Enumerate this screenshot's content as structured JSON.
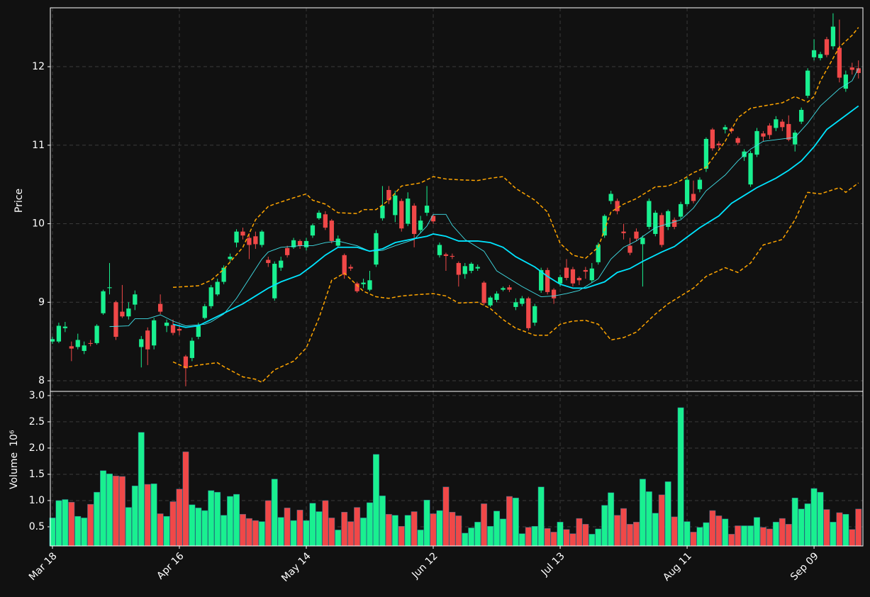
{
  "chart_data": {
    "type": "candlestick",
    "ylabel": "Price",
    "volume_label": "Volume",
    "volume_scale": "10⁶",
    "up_color": "#19f090",
    "down_color": "#f04848",
    "grid": true,
    "xlim": [
      -0.33,
      127.7
    ],
    "xticks": [
      {
        "value": 0,
        "label": "Mar 18"
      },
      {
        "value": 20,
        "label": "Apr 16"
      },
      {
        "value": 40,
        "label": "May 14"
      },
      {
        "value": 60,
        "label": "Jun 12"
      },
      {
        "value": 80,
        "label": "Jul 13"
      },
      {
        "value": 100,
        "label": "Aug 11"
      },
      {
        "value": 120,
        "label": "Sep 09"
      }
    ],
    "ylim": [
      7.865,
      12.75
    ],
    "yticks": [
      8,
      9,
      10,
      11,
      12
    ],
    "y2lim": [
      0.135,
      3.08
    ],
    "y2ticks": [
      0.5,
      {
        "value": 1,
        "label": "1.0"
      },
      1.5,
      {
        "value": 2,
        "label": "2.0"
      },
      2.5,
      {
        "value": 3,
        "label": "3.0"
      }
    ],
    "open": [
      8.5,
      8.5,
      8.67,
      8.44,
      8.43,
      8.38,
      8.48,
      8.48,
      8.86,
      9.18,
      9.0,
      8.88,
      8.82,
      8.97,
      8.43,
      8.64,
      8.45,
      8.98,
      8.7,
      8.71,
      8.66,
      8.31,
      8.29,
      8.56,
      8.8,
      8.95,
      9.1,
      9.26,
      9.55,
      9.76,
      9.9,
      9.82,
      9.84,
      9.73,
      9.54,
      9.05,
      9.44,
      9.69,
      9.7,
      9.78,
      9.7,
      9.85,
      10.07,
      10.12,
      10.04,
      9.72,
      9.6,
      9.45,
      9.24,
      9.23,
      9.16,
      9.48,
      10.07,
      10.43,
      10.11,
      10.29,
      10.0,
      10.23,
      9.92,
      10.14,
      10.1,
      9.6,
      9.61,
      9.59,
      9.5,
      9.36,
      9.4,
      9.43,
      9.25,
      8.96,
      9.03,
      9.16,
      9.19,
      8.94,
      8.98,
      9.05,
      8.74,
      9.15,
      9.41,
      9.16,
      9.24,
      9.44,
      9.42,
      9.31,
      9.41,
      9.28,
      9.51,
      9.85,
      10.29,
      10.29,
      9.9,
      9.72,
      9.9,
      9.74,
      9.96,
      9.87,
      10.11,
      9.96,
      10.05,
      10.09,
      10.25,
      10.38,
      10.44,
      10.7,
      11.2,
      11.02,
      11.2,
      11.21,
      11.09,
      10.85,
      10.5,
      10.88,
      11.15,
      11.25,
      11.22,
      11.3,
      11.27,
      11.01,
      11.3,
      11.63,
      12.12,
      12.11,
      12.35,
      12.26,
      12.24,
      11.72,
      11.99,
      11.98
    ],
    "high": [
      8.56,
      8.74,
      8.75,
      8.5,
      8.6,
      8.5,
      8.52,
      8.72,
      9.16,
      9.5,
      9.02,
      9.22,
      9.0,
      9.15,
      8.57,
      8.68,
      8.8,
      9.1,
      8.78,
      8.78,
      8.72,
      8.33,
      8.55,
      8.74,
      8.98,
      9.22,
      9.3,
      9.47,
      9.62,
      9.93,
      9.95,
      9.88,
      9.9,
      9.92,
      9.58,
      9.52,
      9.58,
      9.72,
      9.82,
      9.8,
      9.82,
      10.0,
      10.17,
      10.16,
      10.06,
      9.85,
      9.62,
      9.48,
      9.26,
      9.3,
      9.4,
      9.92,
      10.48,
      10.48,
      10.42,
      10.32,
      10.4,
      10.26,
      10.1,
      10.48,
      10.12,
      9.76,
      9.63,
      9.62,
      9.52,
      9.5,
      9.51,
      9.48,
      9.27,
      9.08,
      9.14,
      9.2,
      9.22,
      9.05,
      9.08,
      9.07,
      8.98,
      9.44,
      9.44,
      9.18,
      9.35,
      9.55,
      9.45,
      9.33,
      9.45,
      9.5,
      9.76,
      10.12,
      10.42,
      10.32,
      10.0,
      9.82,
      9.94,
      9.85,
      10.32,
      10.17,
      10.14,
      10.18,
      10.08,
      10.28,
      10.59,
      10.55,
      10.59,
      11.1,
      11.22,
      11.05,
      11.26,
      11.23,
      11.11,
      10.95,
      10.93,
      11.22,
      11.18,
      11.28,
      11.37,
      11.33,
      11.38,
      11.19,
      11.48,
      11.98,
      12.35,
      12.19,
      12.38,
      12.68,
      12.6,
      11.95,
      12.05,
      12.08
    ],
    "low": [
      8.47,
      8.48,
      8.62,
      8.25,
      8.4,
      8.34,
      8.44,
      8.46,
      8.84,
      9.1,
      8.52,
      8.8,
      8.78,
      8.9,
      8.17,
      8.2,
      8.4,
      8.85,
      8.62,
      8.58,
      8.58,
      7.93,
      8.25,
      8.53,
      8.78,
      8.92,
      9.08,
      9.23,
      9.52,
      9.7,
      9.8,
      9.55,
      9.68,
      9.7,
      9.45,
      9.02,
      9.4,
      9.57,
      9.68,
      9.68,
      9.66,
      9.82,
      10.05,
      9.92,
      9.75,
      9.7,
      9.3,
      9.4,
      9.12,
      9.18,
      9.14,
      9.45,
      10.04,
      10.25,
      10.02,
      9.9,
      9.97,
      9.7,
      9.88,
      10.1,
      10.0,
      9.57,
      9.4,
      9.55,
      9.2,
      9.3,
      9.37,
      9.4,
      8.96,
      8.94,
      9.0,
      9.14,
      9.13,
      8.9,
      8.95,
      8.64,
      8.7,
      9.12,
      9.1,
      8.98,
      9.2,
      9.28,
      9.2,
      9.22,
      9.3,
      9.25,
      9.48,
      9.82,
      10.25,
      10.12,
      9.8,
      9.6,
      9.78,
      9.2,
      9.93,
      9.84,
      9.7,
      9.92,
      9.93,
      10.06,
      10.22,
      10.26,
      10.4,
      10.66,
      10.93,
      10.96,
      11.15,
      11.15,
      11.0,
      10.8,
      10.47,
      10.85,
      11.05,
      11.08,
      11.18,
      11.18,
      11.05,
      10.92,
      11.27,
      11.6,
      12.08,
      12.08,
      12.12,
      12.22,
      11.8,
      11.68,
      11.9,
      11.85
    ],
    "close": [
      8.53,
      8.7,
      8.69,
      8.41,
      8.52,
      8.45,
      8.47,
      8.7,
      9.14,
      9.19,
      8.56,
      8.82,
      8.92,
      9.1,
      8.53,
      8.4,
      8.77,
      8.88,
      8.74,
      8.61,
      8.64,
      8.16,
      8.51,
      8.7,
      8.95,
      9.19,
      9.26,
      9.44,
      9.58,
      9.9,
      9.85,
      9.73,
      9.74,
      9.9,
      9.5,
      9.49,
      9.53,
      9.6,
      9.79,
      9.72,
      9.78,
      9.98,
      10.14,
      9.95,
      9.78,
      9.81,
      9.35,
      9.43,
      9.14,
      9.25,
      9.28,
      9.88,
      10.23,
      10.3,
      10.36,
      9.94,
      10.32,
      9.87,
      10.04,
      10.23,
      10.03,
      9.73,
      9.59,
      9.58,
      9.35,
      9.46,
      9.49,
      9.45,
      8.99,
      9.06,
      9.11,
      9.18,
      9.16,
      9.0,
      9.05,
      8.67,
      8.95,
      9.41,
      9.13,
      9.05,
      9.32,
      9.31,
      9.24,
      9.28,
      9.39,
      9.43,
      9.73,
      10.1,
      10.38,
      10.16,
      9.88,
      9.63,
      9.81,
      9.82,
      10.29,
      10.14,
      9.73,
      10.16,
      9.96,
      10.25,
      10.56,
      10.29,
      10.56,
      11.08,
      10.96,
      11.0,
      11.23,
      11.18,
      11.03,
      10.92,
      10.9,
      11.18,
      11.11,
      11.13,
      11.33,
      11.23,
      11.07,
      11.16,
      11.45,
      11.95,
      12.21,
      12.16,
      12.15,
      12.51,
      11.86,
      11.9,
      11.96,
      11.92
    ],
    "volume": [
      0.67,
      1.0,
      1.02,
      0.97,
      0.7,
      0.67,
      0.93,
      1.16,
      1.57,
      1.51,
      1.47,
      1.46,
      0.87,
      1.28,
      2.3,
      1.31,
      1.32,
      0.75,
      0.7,
      0.98,
      1.22,
      1.93,
      0.92,
      0.86,
      0.81,
      1.19,
      1.16,
      0.72,
      1.08,
      1.12,
      0.74,
      0.66,
      0.62,
      0.6,
      1.0,
      1.41,
      0.68,
      0.86,
      0.62,
      0.82,
      0.62,
      0.95,
      0.79,
      1.0,
      0.67,
      0.44,
      0.78,
      0.6,
      0.87,
      0.67,
      0.96,
      1.88,
      1.09,
      0.74,
      0.72,
      0.51,
      0.72,
      0.79,
      0.44,
      1.01,
      0.75,
      0.81,
      1.26,
      0.78,
      0.71,
      0.38,
      0.48,
      0.59,
      0.94,
      0.51,
      0.8,
      0.65,
      1.08,
      1.05,
      0.37,
      0.49,
      0.51,
      1.26,
      0.47,
      0.4,
      0.59,
      0.45,
      0.37,
      0.66,
      0.55,
      0.36,
      0.46,
      0.91,
      1.15,
      0.72,
      0.85,
      0.55,
      0.59,
      1.41,
      1.17,
      0.76,
      1.11,
      1.36,
      0.69,
      2.77,
      0.6,
      0.4,
      0.49,
      0.58,
      0.81,
      0.71,
      0.65,
      0.36,
      0.52,
      0.52,
      0.52,
      0.68,
      0.49,
      0.46,
      0.59,
      0.66,
      0.55,
      1.05,
      0.84,
      0.94,
      1.23,
      1.16,
      0.83,
      0.59,
      0.77,
      0.74,
      0.45,
      0.84
    ],
    "lines": [
      {
        "color": "#40e0e8",
        "width": 0.9,
        "x": [
          9,
          12,
          13,
          15,
          17,
          19,
          21,
          24,
          25,
          27,
          29,
          31,
          33,
          34,
          36,
          39,
          41,
          43,
          45,
          48,
          50,
          52,
          54,
          57,
          59,
          60,
          62,
          63,
          65,
          68,
          70,
          72,
          74,
          77,
          79,
          81,
          83,
          86,
          88,
          90,
          92,
          95,
          97,
          99,
          101,
          103,
          106,
          108,
          110,
          112,
          115,
          117,
          119,
          121,
          124,
          126,
          127
        ],
        "values": [
          8.69,
          8.7,
          8.79,
          8.79,
          8.84,
          8.76,
          8.7,
          8.72,
          8.75,
          8.85,
          9.05,
          9.3,
          9.55,
          9.64,
          9.7,
          9.72,
          9.72,
          9.76,
          9.78,
          9.72,
          9.65,
          9.66,
          9.72,
          9.8,
          9.97,
          10.12,
          10.12,
          9.98,
          9.8,
          9.65,
          9.4,
          9.3,
          9.2,
          9.07,
          9.08,
          9.11,
          9.15,
          9.3,
          9.55,
          9.7,
          9.78,
          9.95,
          10.0,
          10.05,
          10.2,
          10.42,
          10.62,
          10.8,
          10.95,
          11.05,
          11.08,
          11.1,
          11.28,
          11.5,
          11.72,
          11.82,
          11.98
        ]
      },
      {
        "color": "#00e5ff",
        "width": 1.8,
        "x": [
          19,
          21,
          23,
          25,
          27,
          30,
          32,
          34,
          36,
          39,
          41,
          43,
          45,
          48,
          50,
          52,
          54,
          57,
          59,
          60,
          62,
          64,
          67,
          69,
          71,
          73,
          76,
          78,
          80,
          82,
          84,
          87,
          89,
          91,
          93,
          96,
          98,
          100,
          102,
          105,
          107,
          109,
          111,
          114,
          116,
          118,
          120,
          122,
          125,
          127
        ],
        "values": [
          8.72,
          8.68,
          8.7,
          8.78,
          8.86,
          8.98,
          9.08,
          9.18,
          9.26,
          9.35,
          9.47,
          9.6,
          9.7,
          9.7,
          9.65,
          9.68,
          9.76,
          9.81,
          9.84,
          9.87,
          9.84,
          9.78,
          9.78,
          9.76,
          9.7,
          9.58,
          9.45,
          9.33,
          9.23,
          9.18,
          9.18,
          9.26,
          9.38,
          9.43,
          9.52,
          9.64,
          9.71,
          9.83,
          9.95,
          10.1,
          10.26,
          10.36,
          10.46,
          10.58,
          10.68,
          10.8,
          10.98,
          11.2,
          11.38,
          11.5
        ]
      },
      {
        "color": "#ffa500",
        "width": 1.5,
        "dash": true,
        "x": [
          19,
          21,
          23,
          25,
          27,
          30,
          32,
          34,
          35,
          38,
          40,
          41,
          43,
          45,
          48,
          49,
          51,
          53,
          55,
          58,
          60,
          62,
          64,
          67,
          69,
          71,
          73,
          76,
          78,
          80,
          82,
          84,
          86,
          88,
          90,
          92,
          95,
          97,
          99,
          101,
          103,
          106,
          108,
          110,
          112,
          115,
          117,
          119,
          120,
          121,
          124,
          126,
          127
        ],
        "values": [
          9.19,
          9.2,
          9.21,
          9.28,
          9.42,
          9.7,
          10.05,
          10.22,
          10.25,
          10.33,
          10.38,
          10.3,
          10.25,
          10.14,
          10.13,
          10.18,
          10.18,
          10.3,
          10.48,
          10.52,
          10.6,
          10.57,
          10.56,
          10.55,
          10.58,
          10.6,
          10.45,
          10.3,
          10.15,
          9.75,
          9.6,
          9.56,
          9.7,
          10.15,
          10.25,
          10.32,
          10.47,
          10.48,
          10.55,
          10.65,
          10.72,
          11.05,
          11.35,
          11.47,
          11.5,
          11.54,
          11.62,
          11.55,
          11.62,
          11.82,
          12.25,
          12.4,
          12.5
        ]
      },
      {
        "color": "#ffa500",
        "width": 1.5,
        "dash": true,
        "x": [
          19,
          21,
          23,
          26,
          27,
          30,
          32,
          33,
          35,
          38,
          40,
          42,
          44,
          46,
          49,
          51,
          53,
          55,
          58,
          60,
          62,
          64,
          67,
          69,
          71,
          73,
          76,
          78,
          80,
          82,
          84,
          86,
          88,
          90,
          92,
          95,
          97,
          99,
          101,
          103,
          106,
          108,
          110,
          112,
          115,
          117,
          119,
          121,
          124,
          125,
          127
        ],
        "values": [
          8.24,
          8.17,
          8.2,
          8.23,
          8.18,
          8.05,
          8.02,
          7.98,
          8.14,
          8.25,
          8.42,
          8.8,
          9.28,
          9.37,
          9.14,
          9.07,
          9.05,
          9.08,
          9.1,
          9.11,
          9.08,
          8.99,
          9.0,
          8.92,
          8.78,
          8.67,
          8.58,
          8.58,
          8.72,
          8.76,
          8.77,
          8.72,
          8.52,
          8.55,
          8.62,
          8.85,
          8.98,
          9.08,
          9.18,
          9.33,
          9.44,
          9.38,
          9.5,
          9.73,
          9.8,
          10.05,
          10.4,
          10.38,
          10.46,
          10.4,
          10.52
        ]
      }
    ]
  }
}
